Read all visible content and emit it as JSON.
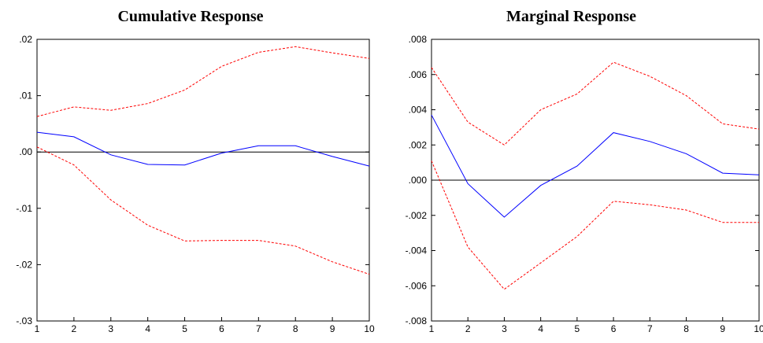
{
  "chart_data": [
    {
      "type": "line",
      "title": "Cumulative Response",
      "x": [
        1,
        2,
        3,
        4,
        5,
        6,
        7,
        8,
        9,
        10
      ],
      "xlim": [
        1,
        10
      ],
      "ylim": [
        -0.03,
        0.02
      ],
      "y_ticks": [
        0.02,
        0.01,
        0.0,
        -0.01,
        -0.02,
        -0.03
      ],
      "y_tick_labels": [
        ".02",
        ".01",
        ".00",
        "-.01",
        "-.02",
        "-.03"
      ],
      "x_tick_labels": [
        "1",
        "2",
        "3",
        "4",
        "5",
        "6",
        "7",
        "8",
        "9",
        "10"
      ],
      "zero_line": 0,
      "grid": false,
      "series": [
        {
          "role": "estimate",
          "style": "solid",
          "color": "#0000ff",
          "values": [
            0.0035,
            0.0027,
            -0.0005,
            -0.0022,
            -0.0023,
            -0.0002,
            0.0011,
            0.0011,
            -0.0008,
            -0.0025
          ]
        },
        {
          "role": "upper",
          "style": "dashed",
          "color": "#ff0000",
          "values": [
            0.0063,
            0.008,
            0.0074,
            0.0086,
            0.011,
            0.0152,
            0.0177,
            0.0187,
            0.0176,
            0.0166
          ]
        },
        {
          "role": "lower",
          "style": "dashed",
          "color": "#ff0000",
          "values": [
            0.0009,
            -0.0023,
            -0.0085,
            -0.013,
            -0.0158,
            -0.0157,
            -0.0157,
            -0.0167,
            -0.0195,
            -0.0217
          ]
        }
      ]
    },
    {
      "type": "line",
      "title": "Marginal Response",
      "x": [
        1,
        2,
        3,
        4,
        5,
        6,
        7,
        8,
        9,
        10
      ],
      "xlim": [
        1,
        10
      ],
      "ylim": [
        -0.008,
        0.008
      ],
      "y_ticks": [
        0.008,
        0.006,
        0.004,
        0.002,
        0.0,
        -0.002,
        -0.004,
        -0.006,
        -0.008
      ],
      "y_tick_labels": [
        ".008",
        ".006",
        ".004",
        ".002",
        ".000",
        "-.002",
        "-.004",
        "-.006",
        "-.008"
      ],
      "x_tick_labels": [
        "1",
        "2",
        "3",
        "4",
        "5",
        "6",
        "7",
        "8",
        "9",
        "10"
      ],
      "zero_line": 0,
      "grid": false,
      "series": [
        {
          "role": "estimate",
          "style": "solid",
          "color": "#0000ff",
          "values": [
            0.0037,
            -0.0002,
            -0.0021,
            -0.0003,
            0.0008,
            0.0027,
            0.0022,
            0.0015,
            0.0004,
            0.0003
          ]
        },
        {
          "role": "upper",
          "style": "dashed",
          "color": "#ff0000",
          "values": [
            0.0064,
            0.0033,
            0.002,
            0.004,
            0.0049,
            0.0067,
            0.0059,
            0.0048,
            0.0032,
            0.0029
          ]
        },
        {
          "role": "lower",
          "style": "dashed",
          "color": "#ff0000",
          "values": [
            0.0011,
            -0.0038,
            -0.0062,
            -0.0047,
            -0.0032,
            -0.0012,
            -0.0014,
            -0.0017,
            -0.0024,
            -0.0024
          ]
        }
      ]
    }
  ]
}
